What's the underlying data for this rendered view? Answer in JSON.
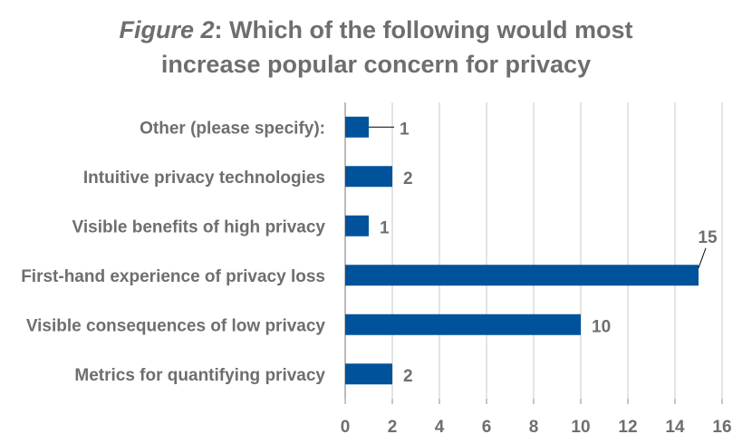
{
  "title": {
    "prefix": "Figure 2",
    "line1_rest": ": Which of the following would most",
    "line2": "increase popular concern for privacy"
  },
  "chart_data": {
    "type": "bar",
    "orientation": "horizontal",
    "categories": [
      "Other (please specify):",
      "Intuitive privacy technologies",
      "Visible benefits of high privacy",
      "First-hand experience of privacy loss",
      "Visible consequences of low privacy",
      "Metrics for quantifying privacy"
    ],
    "values": [
      1,
      2,
      1,
      15,
      10,
      2
    ],
    "data_labels": [
      "1",
      "2",
      "1",
      "15",
      "10",
      "2"
    ],
    "xlim": [
      0,
      16
    ],
    "ticks": [
      "0",
      "2",
      "4",
      "6",
      "8",
      "10",
      "12",
      "14",
      "16"
    ],
    "grid": true,
    "legend": "none",
    "bar_color": "#00539b",
    "xlabel": "",
    "ylabel": ""
  }
}
